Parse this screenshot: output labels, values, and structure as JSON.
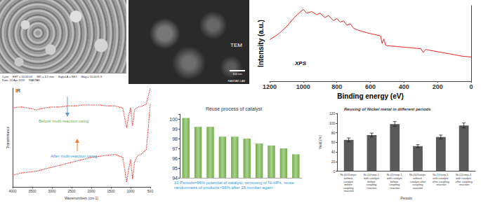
{
  "images": {
    "sem": {
      "texts": [
        "1 μm",
        "EHT = 10.00 kV",
        "WD = 4.5 mm",
        "Signal A = SE2",
        "Mag = 10.00 K X",
        "Date :10 Apr 2019",
        "RASTAK"
      ]
    },
    "tem": {
      "label": "TEM",
      "scale": "100 nm",
      "footer": "RASTAK LAB"
    }
  },
  "chart_data": [
    {
      "type": "line",
      "x_label": "Binding energy (eV)",
      "y_label": "Intensity (a.u.)",
      "annotations": [
        {
          "text": "XPS",
          "color": "#000000"
        }
      ],
      "xlim": [
        1200,
        0
      ],
      "xticks": [
        1200,
        1000,
        800,
        600,
        400,
        200,
        0
      ],
      "ylim": [
        0,
        100
      ],
      "tick_labels": "x",
      "grid": false,
      "series": [
        {
          "color": "#e8251c",
          "line_style": "solid",
          "marker": "none",
          "x": [
            1200,
            1150,
            1100,
            1050,
            1000,
            980,
            950,
            920,
            900,
            870,
            850,
            820,
            800,
            780,
            760,
            740,
            720,
            700,
            680,
            650,
            620,
            600,
            580,
            560,
            540,
            530,
            520,
            510,
            500,
            450,
            400,
            350,
            300,
            285,
            270,
            250,
            200,
            150,
            100,
            50,
            0
          ],
          "values": [
            55,
            62,
            72,
            85,
            95,
            90,
            92,
            88,
            90,
            84,
            87,
            80,
            83,
            78,
            80,
            74,
            76,
            70,
            68,
            66,
            64,
            63,
            62,
            61,
            60,
            50,
            56,
            48,
            47,
            46,
            45,
            44,
            43,
            38,
            42,
            41,
            39,
            37,
            35,
            33,
            32
          ]
        }
      ]
    },
    {
      "type": "line",
      "x_label": "Wavenumbers (cm-1)",
      "y_label": "Transmittance",
      "annotations": [
        {
          "text": "IR",
          "color": "#000000"
        },
        {
          "text": "Before multi-reaction using",
          "color": "#70ad47"
        },
        {
          "text": "After multi-reaction using",
          "color": "#2e9bd6"
        }
      ],
      "xlim": [
        4000,
        500
      ],
      "xticks": [
        4000,
        3500,
        3000,
        2500,
        2000,
        1500,
        1000,
        500
      ],
      "ylim": [
        0,
        100
      ],
      "tick_labels": "x",
      "grid": false,
      "series": [
        {
          "name": "Before multi-reaction using",
          "color": "#e8251c",
          "line_style": "dotted",
          "marker": "none",
          "x": [
            4000,
            3800,
            3600,
            3400,
            3200,
            3000,
            2800,
            2600,
            2400,
            2200,
            2000,
            1800,
            1600,
            1400,
            1200,
            1100,
            1050,
            1000,
            950,
            900,
            850,
            800,
            700,
            600,
            550,
            500
          ],
          "values": [
            80,
            81,
            80,
            78,
            80,
            81,
            81,
            82,
            82,
            83,
            83,
            83,
            82,
            82,
            80,
            60,
            72,
            80,
            62,
            78,
            80,
            81,
            82,
            84,
            92,
            100
          ]
        },
        {
          "name": "After multi-reaction using",
          "color": "#e8251c",
          "line_style": "dotted",
          "marker": "none",
          "x": [
            4000,
            3800,
            3600,
            3400,
            3200,
            3000,
            2800,
            2600,
            2400,
            2200,
            2000,
            1800,
            1600,
            1400,
            1200,
            1100,
            1050,
            1000,
            950,
            900,
            850,
            800,
            700,
            600,
            550,
            500
          ],
          "values": [
            12,
            14,
            15,
            16,
            18,
            20,
            22,
            24,
            26,
            28,
            30,
            31,
            32,
            33,
            30,
            5,
            18,
            28,
            8,
            25,
            30,
            32,
            34,
            38,
            60,
            84
          ]
        }
      ]
    },
    {
      "type": "bar",
      "title": "Reuse process of catalyst",
      "note": "10 Periods=96% potential of catalyst, removing of Ni-HPs, reuse randomness of products>96% after 15 number again",
      "categories": [
        null,
        null,
        null,
        null,
        null,
        null,
        null,
        null,
        null,
        null
      ],
      "values": [
        100.1,
        99.2,
        99.2,
        98.2,
        98.2,
        98.0,
        97.5,
        97.3,
        97.0,
        96.4
      ],
      "color": "#a9d18e",
      "ylim": [
        94,
        100.5
      ],
      "yticks": [
        94,
        95,
        96,
        97,
        98,
        99,
        100
      ],
      "tick_labels": "y",
      "grid": false
    },
    {
      "type": "bar",
      "title": "Reusing of Nickel metal in different periods",
      "x_label": "Periods",
      "y_label": "Yield (%)",
      "categories": [
        "Ni-(0)/2steps without catalyst before coupling reaction",
        "Ni-(1)/step 1 with catalyst before coupling reaction",
        "Ni-(2)/step 1 with catalyst before coupling reaction",
        "Ni-(0)/2steps without catalyst after coupling reaction",
        "Ni-(1)/step 1 with catalyst after coupling reaction",
        "Ni-(2)/step 2 with catalyst after coupling reaction"
      ],
      "values": [
        65,
        75,
        98,
        52,
        71,
        95
      ],
      "errors": [
        4,
        4,
        5,
        3,
        4,
        5
      ],
      "color": "#595959",
      "ylim": [
        0,
        120
      ],
      "yticks": [
        0,
        20,
        40,
        60,
        80,
        100,
        120
      ],
      "grid": false
    }
  ]
}
